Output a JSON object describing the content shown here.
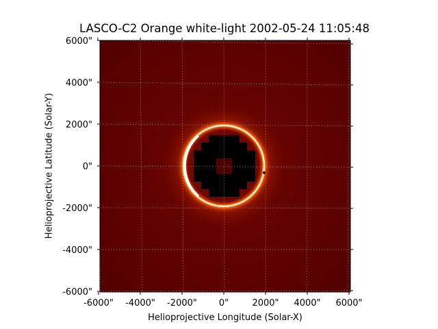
{
  "figure": {
    "title": "LASCO-C2 Orange white-light 2002-05-24 11:05:48",
    "xlabel": "Helioprojective Longitude (Solar-X)",
    "ylabel": "Helioprojective Latitude (Solar-Y)"
  },
  "image": {
    "background_color": "#5a0000",
    "ring_color": "#fff4d8",
    "glow_color": "#ff5a10",
    "occulter_color": "#000000",
    "inner_occulter_color": "#4a0000",
    "ring_radius_arcsec": 1950,
    "extent_arcsec": [
      -6000,
      6100
    ]
  },
  "axes": {
    "x_ticks": [
      "-6000\"",
      "-4000\"",
      "-2000\"",
      "0\"",
      "2000\"",
      "4000\"",
      "6000\""
    ],
    "x_tick_values": [
      -6000,
      -4000,
      -2000,
      0,
      2000,
      4000,
      6000
    ],
    "y_ticks": [
      "6000\"",
      "4000\"",
      "2000\"",
      "0\"",
      "-2000\"",
      "-4000\"",
      "-6000\""
    ],
    "y_tick_values": [
      6000,
      4000,
      2000,
      0,
      -2000,
      -4000,
      -6000
    ],
    "grid": "on (dotted)"
  }
}
